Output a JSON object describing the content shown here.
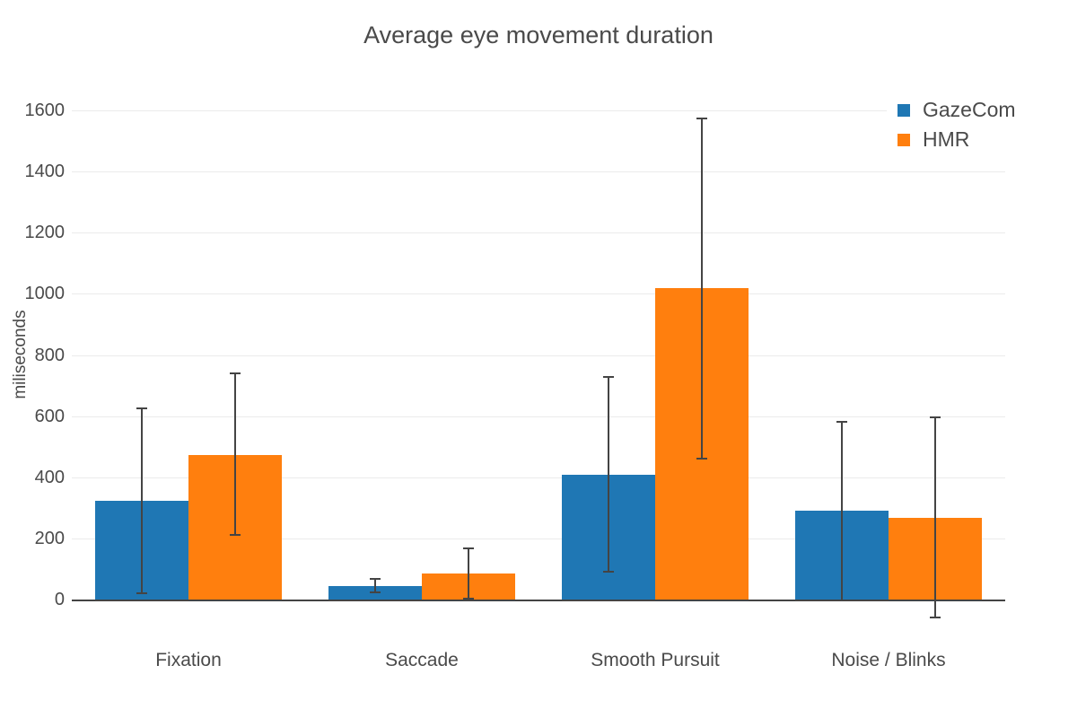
{
  "chart_data": {
    "type": "bar",
    "title": "Average eye movement duration",
    "ylabel": "miliseconds",
    "xlabel": "",
    "categories": [
      "Fixation",
      "Saccade",
      "Smooth Pursuit",
      "Noise / Blinks"
    ],
    "series": [
      {
        "name": "GazeCom",
        "color": "#1f77b4",
        "values": [
          324,
          48,
          411,
          292
        ],
        "error_low": [
          19,
          24,
          90,
          -2
        ],
        "error_high": [
          631,
          72,
          732,
          585
        ]
      },
      {
        "name": "HMR",
        "color": "#ff7f0e",
        "values": [
          475,
          87,
          1021,
          270
        ],
        "error_low": [
          210,
          2,
          460,
          -58
        ],
        "error_high": [
          745,
          173,
          1578,
          600
        ]
      }
    ],
    "y_ticks": [
      0,
      200,
      400,
      600,
      800,
      1000,
      1200,
      1400,
      1600
    ],
    "ylim": [
      -100,
      1700
    ],
    "grid": true,
    "legend_position": "top-right",
    "error_bar_color": "#444444",
    "grid_color": "#ebebeb",
    "axis_line_color": "#444444",
    "text_color": "#4a4a4a",
    "background_color": "#ffffff"
  },
  "legend": {
    "items": [
      {
        "label": "GazeCom",
        "color": "#1f77b4"
      },
      {
        "label": "HMR",
        "color": "#ff7f0e"
      }
    ]
  }
}
